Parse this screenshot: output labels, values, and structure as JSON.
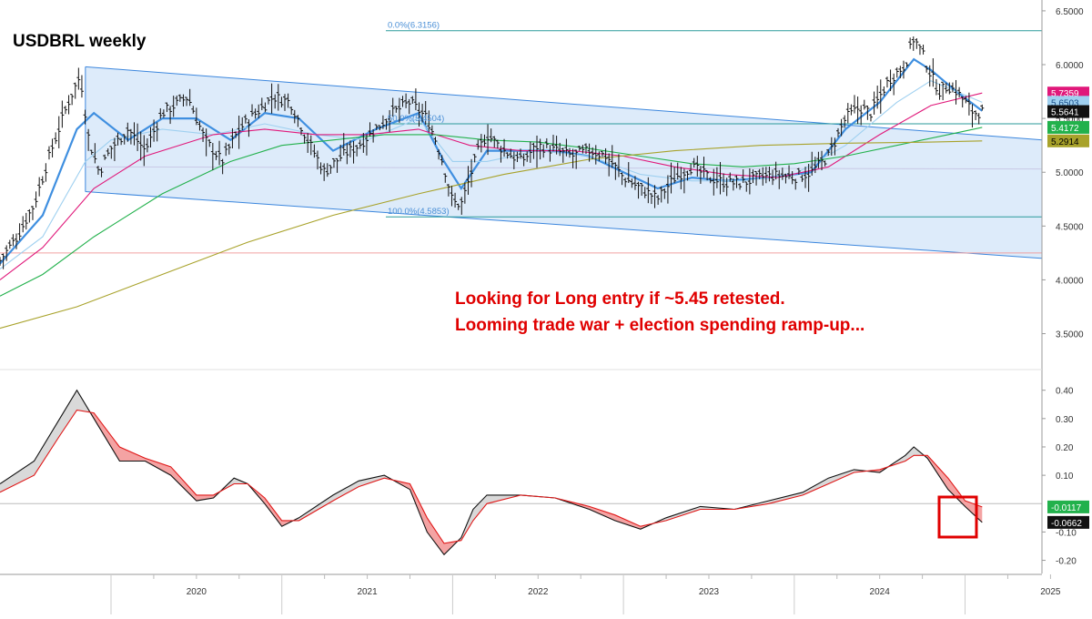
{
  "chart_data": {
    "type": "line",
    "title": "USDBRL weekly",
    "annotations": [
      "Looking for Long entry if ~5.45 retested.",
      "Looming trade war + election spending ramp-up..."
    ],
    "x_axis": {
      "ticks": [
        "2020",
        "2021",
        "2022",
        "2023",
        "2024",
        "2025"
      ],
      "range": [
        2019.35,
        2025.45
      ]
    },
    "price_panel": {
      "y_range": [
        3.2,
        6.55
      ],
      "y_ticks": [
        "6.5000",
        "6.0000",
        "5.5000",
        "5.0000",
        "4.5000",
        "4.0000",
        "3.5000"
      ],
      "fib_levels": [
        {
          "label": "0.0%(6.3156)",
          "value": 6.3156
        },
        {
          "label": "50.0%(5.4504)",
          "value": 5.4504
        },
        {
          "label": "100.0%(4.5853)",
          "value": 4.5853
        }
      ],
      "horizontal_line": 4.25,
      "price_labels": [
        {
          "text": "5.7359",
          "value": 5.7359,
          "color": "#e0187a",
          "text_color": "#ffffff"
        },
        {
          "text": "5.6503",
          "value": 5.6503,
          "color": "#9fd0f0",
          "text_color": "#1a4f8a"
        },
        {
          "text": "5.5641",
          "value": 5.5641,
          "color": "#111111",
          "text_color": "#ffffff"
        },
        {
          "text": "5.4172",
          "value": 5.4172,
          "color": "#22b14c",
          "text_color": "#ffffff"
        },
        {
          "text": "5.2914",
          "value": 5.2914,
          "color": "#a8a22a",
          "text_color": "#000000"
        }
      ],
      "channel": {
        "upper": [
          [
            2019.85,
            5.98
          ],
          [
            2025.45,
            5.3
          ]
        ],
        "lower": [
          [
            2019.85,
            4.82
          ],
          [
            2025.45,
            4.2
          ]
        ]
      },
      "price_series": [
        [
          2019.35,
          4.18
        ],
        [
          2019.45,
          4.4
        ],
        [
          2019.55,
          4.7
        ],
        [
          2019.65,
          5.2
        ],
        [
          2019.75,
          5.65
        ],
        [
          2019.82,
          5.9
        ],
        [
          2019.87,
          5.3
        ],
        [
          2019.93,
          5.0
        ],
        [
          2020.0,
          5.22
        ],
        [
          2020.1,
          5.4
        ],
        [
          2020.2,
          5.2
        ],
        [
          2020.3,
          5.55
        ],
        [
          2020.45,
          5.7
        ],
        [
          2020.55,
          5.3
        ],
        [
          2020.65,
          5.1
        ],
        [
          2020.75,
          5.4
        ],
        [
          2020.85,
          5.55
        ],
        [
          2020.95,
          5.7
        ],
        [
          2021.05,
          5.65
        ],
        [
          2021.15,
          5.3
        ],
        [
          2021.25,
          5.0
        ],
        [
          2021.35,
          5.15
        ],
        [
          2021.45,
          5.25
        ],
        [
          2021.55,
          5.4
        ],
        [
          2021.65,
          5.55
        ],
        [
          2021.75,
          5.65
        ],
        [
          2021.85,
          5.5
        ],
        [
          2021.9,
          5.3
        ],
        [
          2021.95,
          5.05
        ],
        [
          2022.0,
          4.72
        ],
        [
          2022.05,
          4.7
        ],
        [
          2022.1,
          4.95
        ],
        [
          2022.15,
          5.2
        ],
        [
          2022.2,
          5.35
        ],
        [
          2022.3,
          5.2
        ],
        [
          2022.4,
          5.1
        ],
        [
          2022.5,
          5.25
        ],
        [
          2022.6,
          5.2
        ],
        [
          2022.7,
          5.15
        ],
        [
          2022.8,
          5.2
        ],
        [
          2022.9,
          5.15
        ],
        [
          2023.0,
          4.95
        ],
        [
          2023.1,
          4.85
        ],
        [
          2023.2,
          4.75
        ],
        [
          2023.3,
          4.95
        ],
        [
          2023.4,
          5.05
        ],
        [
          2023.5,
          4.95
        ],
        [
          2023.6,
          4.9
        ],
        [
          2023.7,
          4.9
        ],
        [
          2023.8,
          4.95
        ],
        [
          2023.9,
          4.97
        ],
        [
          2024.0,
          4.95
        ],
        [
          2024.1,
          5.0
        ],
        [
          2024.2,
          5.15
        ],
        [
          2024.3,
          5.5
        ],
        [
          2024.38,
          5.6
        ],
        [
          2024.45,
          5.55
        ],
        [
          2024.55,
          5.85
        ],
        [
          2024.65,
          6.0
        ],
        [
          2024.7,
          6.25
        ],
        [
          2024.75,
          6.1
        ],
        [
          2024.8,
          5.9
        ],
        [
          2024.85,
          5.75
        ],
        [
          2024.9,
          5.8
        ],
        [
          2024.95,
          5.75
        ],
        [
          2025.0,
          5.65
        ],
        [
          2025.05,
          5.55
        ],
        [
          2025.1,
          5.56
        ]
      ],
      "ma_series": [
        {
          "color": "#3f8fe0",
          "points": [
            [
              2019.35,
              4.15
            ],
            [
              2019.6,
              4.6
            ],
            [
              2019.8,
              5.4
            ],
            [
              2019.9,
              5.55
            ],
            [
              2020.1,
              5.3
            ],
            [
              2020.3,
              5.5
            ],
            [
              2020.5,
              5.5
            ],
            [
              2020.7,
              5.3
            ],
            [
              2020.9,
              5.55
            ],
            [
              2021.1,
              5.5
            ],
            [
              2021.3,
              5.2
            ],
            [
              2021.55,
              5.4
            ],
            [
              2021.8,
              5.55
            ],
            [
              2021.95,
              5.1
            ],
            [
              2022.05,
              4.85
            ],
            [
              2022.2,
              5.2
            ],
            [
              2022.4,
              5.2
            ],
            [
              2022.6,
              5.2
            ],
            [
              2022.8,
              5.15
            ],
            [
              2023.0,
              5.0
            ],
            [
              2023.2,
              4.85
            ],
            [
              2023.4,
              4.95
            ],
            [
              2023.6,
              4.92
            ],
            [
              2023.85,
              4.95
            ],
            [
              2024.1,
              5.0
            ],
            [
              2024.3,
              5.4
            ],
            [
              2024.5,
              5.65
            ],
            [
              2024.7,
              6.05
            ],
            [
              2024.8,
              5.95
            ],
            [
              2024.95,
              5.75
            ],
            [
              2025.1,
              5.57
            ]
          ]
        },
        {
          "color": "#9fd0f0",
          "points": [
            [
              2019.35,
              4.1
            ],
            [
              2019.6,
              4.4
            ],
            [
              2019.85,
              5.1
            ],
            [
              2020.0,
              5.3
            ],
            [
              2020.3,
              5.4
            ],
            [
              2020.6,
              5.35
            ],
            [
              2020.9,
              5.45
            ],
            [
              2021.2,
              5.35
            ],
            [
              2021.5,
              5.3
            ],
            [
              2021.8,
              5.5
            ],
            [
              2022.0,
              5.1
            ],
            [
              2022.2,
              5.1
            ],
            [
              2022.5,
              5.2
            ],
            [
              2022.8,
              5.15
            ],
            [
              2023.1,
              4.98
            ],
            [
              2023.4,
              4.92
            ],
            [
              2023.7,
              4.92
            ],
            [
              2024.0,
              4.98
            ],
            [
              2024.3,
              5.25
            ],
            [
              2024.6,
              5.65
            ],
            [
              2024.8,
              5.85
            ],
            [
              2025.1,
              5.65
            ]
          ]
        },
        {
          "color": "#e0187a",
          "points": [
            [
              2019.35,
              4.0
            ],
            [
              2019.6,
              4.3
            ],
            [
              2019.9,
              4.85
            ],
            [
              2020.2,
              5.15
            ],
            [
              2020.6,
              5.35
            ],
            [
              2020.9,
              5.4
            ],
            [
              2021.2,
              5.35
            ],
            [
              2021.5,
              5.35
            ],
            [
              2021.8,
              5.4
            ],
            [
              2022.1,
              5.25
            ],
            [
              2022.4,
              5.2
            ],
            [
              2022.7,
              5.2
            ],
            [
              2023.0,
              5.15
            ],
            [
              2023.3,
              5.05
            ],
            [
              2023.6,
              4.98
            ],
            [
              2023.9,
              4.95
            ],
            [
              2024.2,
              5.05
            ],
            [
              2024.5,
              5.35
            ],
            [
              2024.8,
              5.62
            ],
            [
              2025.1,
              5.7359
            ]
          ]
        },
        {
          "color": "#22b14c",
          "points": [
            [
              2019.35,
              3.85
            ],
            [
              2019.6,
              4.05
            ],
            [
              2019.9,
              4.4
            ],
            [
              2020.3,
              4.8
            ],
            [
              2020.7,
              5.1
            ],
            [
              2021.0,
              5.25
            ],
            [
              2021.3,
              5.3
            ],
            [
              2021.6,
              5.35
            ],
            [
              2021.9,
              5.35
            ],
            [
              2022.2,
              5.3
            ],
            [
              2022.5,
              5.28
            ],
            [
              2022.8,
              5.22
            ],
            [
              2023.1,
              5.15
            ],
            [
              2023.4,
              5.08
            ],
            [
              2023.7,
              5.05
            ],
            [
              2024.0,
              5.08
            ],
            [
              2024.3,
              5.15
            ],
            [
              2024.6,
              5.25
            ],
            [
              2024.9,
              5.35
            ],
            [
              2025.1,
              5.4172
            ]
          ]
        },
        {
          "color": "#a8a22a",
          "points": [
            [
              2019.35,
              3.55
            ],
            [
              2019.8,
              3.75
            ],
            [
              2020.3,
              4.05
            ],
            [
              2020.8,
              4.35
            ],
            [
              2021.3,
              4.6
            ],
            [
              2021.8,
              4.8
            ],
            [
              2022.3,
              4.98
            ],
            [
              2022.8,
              5.12
            ],
            [
              2023.3,
              5.2
            ],
            [
              2023.8,
              5.25
            ],
            [
              2024.3,
              5.27
            ],
            [
              2024.8,
              5.28
            ],
            [
              2025.1,
              5.2914
            ]
          ]
        }
      ]
    },
    "macd_panel": {
      "y_range": [
        -0.24,
        0.46
      ],
      "y_ticks": [
        "0.40",
        "0.30",
        "0.20",
        "0.10",
        "-0.10",
        "-0.20"
      ],
      "zero_line": 0.0,
      "value_labels": [
        {
          "text": "-0.0117",
          "value": -0.0117,
          "color": "#22b14c",
          "text_color": "#ffffff"
        },
        {
          "text": "-0.0662",
          "value": -0.0662,
          "color": "#111111",
          "text_color": "#ffffff"
        }
      ],
      "macd": [
        [
          2019.35,
          0.07
        ],
        [
          2019.55,
          0.15
        ],
        [
          2019.7,
          0.3
        ],
        [
          2019.8,
          0.4
        ],
        [
          2019.9,
          0.3
        ],
        [
          2020.05,
          0.15
        ],
        [
          2020.2,
          0.15
        ],
        [
          2020.35,
          0.1
        ],
        [
          2020.5,
          0.01
        ],
        [
          2020.6,
          0.02
        ],
        [
          2020.72,
          0.09
        ],
        [
          2020.8,
          0.07
        ],
        [
          2020.9,
          0.0
        ],
        [
          2021.0,
          -0.08
        ],
        [
          2021.1,
          -0.05
        ],
        [
          2021.3,
          0.03
        ],
        [
          2021.45,
          0.08
        ],
        [
          2021.6,
          0.1
        ],
        [
          2021.75,
          0.05
        ],
        [
          2021.85,
          -0.1
        ],
        [
          2021.95,
          -0.18
        ],
        [
          2022.05,
          -0.12
        ],
        [
          2022.12,
          -0.02
        ],
        [
          2022.2,
          0.03
        ],
        [
          2022.4,
          0.03
        ],
        [
          2022.6,
          0.02
        ],
        [
          2022.8,
          -0.02
        ],
        [
          2022.95,
          -0.06
        ],
        [
          2023.1,
          -0.09
        ],
        [
          2023.25,
          -0.05
        ],
        [
          2023.45,
          -0.01
        ],
        [
          2023.65,
          -0.02
        ],
        [
          2023.85,
          0.01
        ],
        [
          2024.05,
          0.04
        ],
        [
          2024.2,
          0.09
        ],
        [
          2024.35,
          0.12
        ],
        [
          2024.5,
          0.11
        ],
        [
          2024.65,
          0.17
        ],
        [
          2024.7,
          0.2
        ],
        [
          2024.78,
          0.16
        ],
        [
          2024.9,
          0.05
        ],
        [
          2025.0,
          -0.01
        ],
        [
          2025.1,
          -0.0662
        ]
      ],
      "signal": [
        [
          2019.35,
          0.04
        ],
        [
          2019.55,
          0.1
        ],
        [
          2019.7,
          0.24
        ],
        [
          2019.8,
          0.33
        ],
        [
          2019.9,
          0.32
        ],
        [
          2020.05,
          0.2
        ],
        [
          2020.2,
          0.16
        ],
        [
          2020.35,
          0.13
        ],
        [
          2020.5,
          0.03
        ],
        [
          2020.6,
          0.03
        ],
        [
          2020.72,
          0.07
        ],
        [
          2020.8,
          0.07
        ],
        [
          2020.9,
          0.02
        ],
        [
          2021.0,
          -0.06
        ],
        [
          2021.1,
          -0.06
        ],
        [
          2021.3,
          0.01
        ],
        [
          2021.45,
          0.06
        ],
        [
          2021.6,
          0.09
        ],
        [
          2021.75,
          0.07
        ],
        [
          2021.85,
          -0.05
        ],
        [
          2021.95,
          -0.14
        ],
        [
          2022.05,
          -0.13
        ],
        [
          2022.12,
          -0.06
        ],
        [
          2022.2,
          0.0
        ],
        [
          2022.4,
          0.03
        ],
        [
          2022.6,
          0.02
        ],
        [
          2022.8,
          -0.01
        ],
        [
          2022.95,
          -0.04
        ],
        [
          2023.1,
          -0.08
        ],
        [
          2023.25,
          -0.06
        ],
        [
          2023.45,
          -0.02
        ],
        [
          2023.65,
          -0.02
        ],
        [
          2023.85,
          0.0
        ],
        [
          2024.05,
          0.03
        ],
        [
          2024.2,
          0.07
        ],
        [
          2024.35,
          0.11
        ],
        [
          2024.5,
          0.12
        ],
        [
          2024.65,
          0.15
        ],
        [
          2024.7,
          0.17
        ],
        [
          2024.78,
          0.17
        ],
        [
          2024.9,
          0.09
        ],
        [
          2025.0,
          0.01
        ],
        [
          2025.1,
          -0.0117
        ]
      ]
    }
  }
}
